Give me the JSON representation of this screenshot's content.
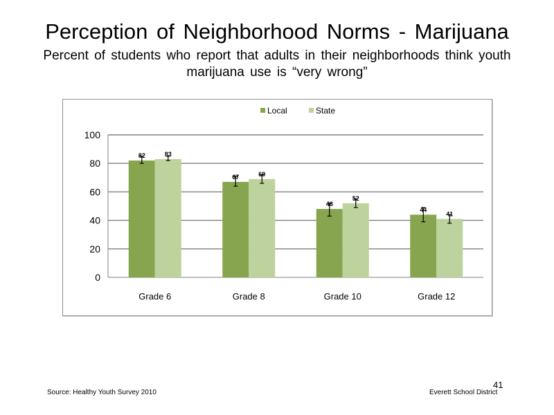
{
  "slide": {
    "title": "Perception  of Neighborhood  Norms - Marijuana",
    "subtitle": "Percent of students  who report that adults  in their neighborhoods  think  youth marijuana  use is “very wrong”",
    "source": "Source: Healthy Youth Survey 2010",
    "page_number": "41",
    "organization": "Everett School District"
  },
  "chart_data": {
    "type": "bar",
    "categories": [
      "Grade 6",
      "Grade 8",
      "Grade 10",
      "Grade 12"
    ],
    "series": [
      {
        "name": "Local",
        "color": "#86a54e",
        "values": [
          82,
          67,
          48,
          44
        ],
        "error_low": [
          80,
          64,
          43,
          39
        ],
        "error_high": [
          85,
          71,
          52,
          49
        ]
      },
      {
        "name": "State",
        "color": "#bdd29c",
        "values": [
          83,
          69,
          52,
          41
        ],
        "error_low": [
          82,
          66,
          49,
          38
        ],
        "error_high": [
          85,
          72,
          55,
          44
        ]
      }
    ],
    "data_labels": [
      [
        "82",
        "67",
        "48",
        "44"
      ],
      [
        "83",
        "69",
        "52",
        "41"
      ]
    ],
    "ylim": [
      0,
      100
    ],
    "yticks": [
      "0",
      "20",
      "40",
      "60",
      "80",
      "100"
    ],
    "grid": true,
    "legend": "top-center"
  }
}
